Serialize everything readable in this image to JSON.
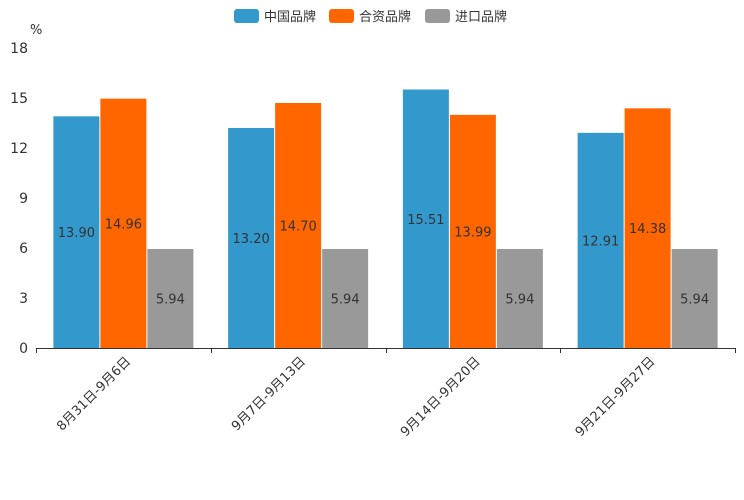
{
  "chart_data": {
    "type": "bar",
    "title": "",
    "xlabel": "",
    "ylabel": "%",
    "ylim": [
      0,
      18
    ],
    "yticks": [
      0,
      3,
      6,
      9,
      12,
      15,
      18
    ],
    "grid": false,
    "legend_position": "top-center",
    "categories": [
      "8月31日-9月6日",
      "9月7日-9月13日",
      "9月14日-9月20日",
      "9月21日-9月27日"
    ],
    "series": [
      {
        "name": "中国品牌",
        "color": "#3399CC",
        "values": [
          13.9,
          13.2,
          15.51,
          12.91
        ],
        "labels": [
          "13.90",
          "13.20",
          "15.51",
          "12.91"
        ]
      },
      {
        "name": "合资品牌",
        "color": "#FF6600",
        "values": [
          14.96,
          14.7,
          13.99,
          14.38
        ],
        "labels": [
          "14.96",
          "14.70",
          "13.99",
          "14.38"
        ]
      },
      {
        "name": "进口品牌",
        "color": "#999999",
        "values": [
          5.94,
          5.94,
          5.94,
          5.94
        ],
        "labels": [
          "5.94",
          "5.94",
          "5.94",
          "5.94"
        ]
      }
    ]
  }
}
